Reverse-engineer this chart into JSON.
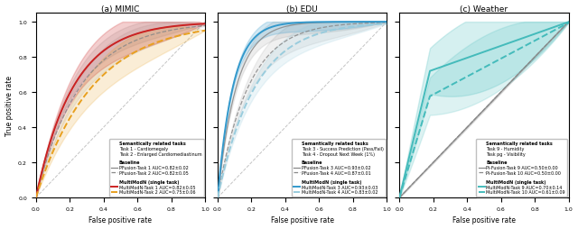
{
  "fig_width": 6.4,
  "fig_height": 2.55,
  "dpi": 100,
  "background_color": "#ffffff",
  "subplots": [
    {
      "title": "(a) MIMIC",
      "xlabel": "False positive rate",
      "ylabel": "True positive rate",
      "xlim": [
        0.0,
        1.0
      ],
      "ylim": [
        0.0,
        1.05
      ],
      "legend_header": "Semantically related tasks",
      "legend_tasks": [
        "Task 1 - Cardiomegaly",
        "Task 2 - Enlarged Cardiomediastinum"
      ],
      "legend_baseline_header": "Baseline",
      "legend_baseline": [
        "PFusion-Task 1 AUC=0.82±0.02",
        "PFusion-Task 2 AUC=0.82±0.05"
      ],
      "legend_multimodn_header": "MultiModN (single task)",
      "legend_multimodn": [
        "MultiModN-Task 1 AUC=0.82±0.05",
        "MultiModN-Task 2 AUC=0.75±0.06"
      ],
      "b1_color": "#888888",
      "b2_color": "#888888",
      "m1_color": "#cc2222",
      "m2_color": "#e8a020",
      "b1_std": 0.06,
      "b2_std": 0.07,
      "m1_std": 0.1,
      "m2_std": 0.1,
      "b1_k": 4.5,
      "b2_k": 3.8,
      "m1_k": 4.5,
      "m2_k": 3.0
    },
    {
      "title": "(b) EDU",
      "xlabel": "False positive rate",
      "ylabel": "",
      "xlim": [
        0.0,
        1.0
      ],
      "ylim": [
        0.0,
        1.05
      ],
      "legend_header": "Semantically related tasks",
      "legend_tasks": [
        "Task 3 - Success Prediction (Pass/Fail)",
        "Task 4 - Dropout Next Week (1%)"
      ],
      "legend_baseline_header": "Baseline",
      "legend_baseline": [
        "PFusion-Task 3 AUC=0.93±0.02",
        "PFusion-Task 4 AUC=0.87±0.01"
      ],
      "legend_multimodn_header": "MultiModN (single task)",
      "legend_multimodn": [
        "MultiModN-Task 3 AUC=0.93±0.03",
        "MultiModN-Task 4 AUC=0.83±0.02"
      ],
      "b1_color": "#888888",
      "b2_color": "#888888",
      "m1_color": "#3399cc",
      "m2_color": "#99ccdd",
      "b1_std": 0.06,
      "b2_std": 0.08,
      "m1_std": 0.05,
      "m2_std": 0.07,
      "b1_k": 9.0,
      "b2_k": 5.5,
      "m1_k": 11.0,
      "m2_k": 4.5
    },
    {
      "title": "(c) Weather",
      "xlabel": "False positive rate",
      "ylabel": "",
      "xlim": [
        0.0,
        1.0
      ],
      "ylim": [
        0.0,
        1.05
      ],
      "legend_header": "Semantically related tasks",
      "legend_tasks": [
        "Task 9 - Humidity",
        "Task pg - Visibility"
      ],
      "legend_baseline_header": "Baseline",
      "legend_baseline": [
        "Pi-Fusion-Task 9 AUC=0.50±0.00",
        "Pi-Fusion-Task 10 AUC=0.50±0.00"
      ],
      "legend_multimodn_header": "MultiModN (single task)",
      "legend_multimodn": [
        "MultiModN-Task 9 AUC=0.70±0.14",
        "MultiModN-Task 10 AUC=0.61±0.09"
      ],
      "b1_color": "#888888",
      "b2_color": "#888888",
      "m1_color": "#44bbbb",
      "m2_color": "#44bbbb",
      "b1_std": 0.005,
      "b2_std": 0.005,
      "m1_std": 0.22,
      "m2_std": 0.18,
      "b1_k": 1.0,
      "b2_k": 1.0,
      "m1_k": 0.0,
      "m2_k": 0.0
    }
  ]
}
